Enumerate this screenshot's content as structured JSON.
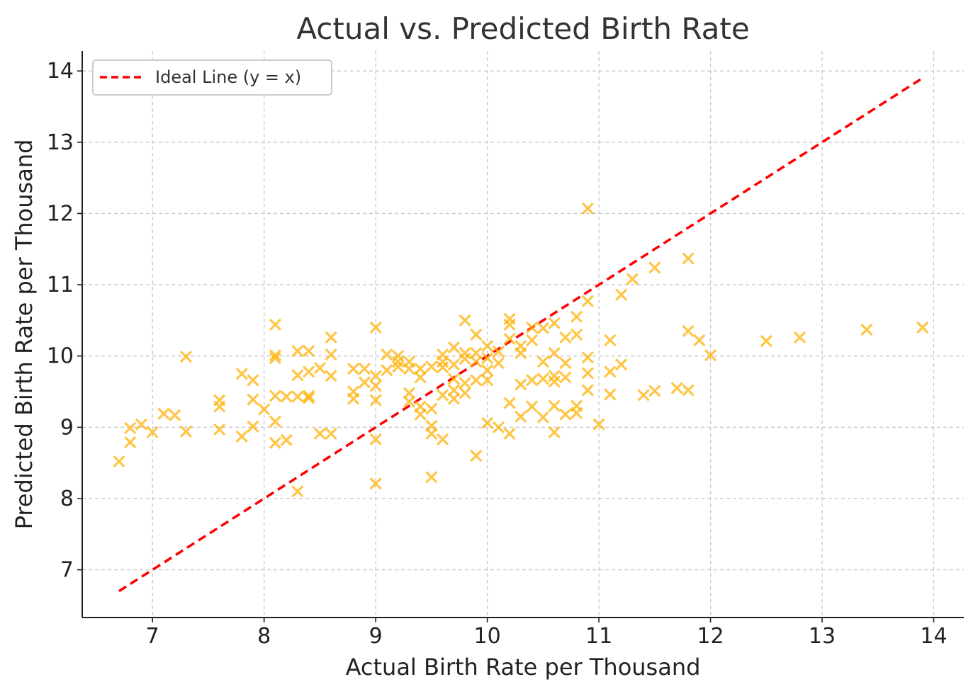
{
  "chart_data": {
    "type": "scatter",
    "title": "Actual vs. Predicted Birth Rate",
    "xlabel": "Actual Birth Rate per Thousand",
    "ylabel": "Predicted Birth Rate per Thousand",
    "xlim": [
      6.37,
      14.27
    ],
    "ylim": [
      6.33,
      14.28
    ],
    "xticks": [
      7,
      8,
      9,
      10,
      11,
      12,
      13,
      14
    ],
    "yticks": [
      7,
      8,
      9,
      10,
      11,
      12,
      13,
      14
    ],
    "grid": true,
    "legend": {
      "position": "top-left",
      "entries": [
        "Ideal Line (y = x)"
      ]
    },
    "colors": {
      "points": "#FFB000",
      "ideal_line": "#FF0000",
      "grid": "#C8C8C8",
      "axes": "#222222"
    },
    "ideal_line": {
      "name": "Ideal Line (y = x)",
      "x": [
        6.7,
        13.9
      ],
      "y": [
        6.7,
        13.9
      ],
      "style": "dashed"
    },
    "points": [
      [
        6.7,
        8.52
      ],
      [
        6.8,
        8.79
      ],
      [
        6.8,
        8.99
      ],
      [
        6.9,
        9.04
      ],
      [
        7.0,
        8.93
      ],
      [
        7.1,
        9.19
      ],
      [
        7.2,
        9.17
      ],
      [
        7.3,
        8.94
      ],
      [
        7.3,
        9.99
      ],
      [
        7.6,
        8.97
      ],
      [
        7.6,
        9.29
      ],
      [
        7.6,
        9.38
      ],
      [
        7.8,
        8.87
      ],
      [
        7.8,
        9.75
      ],
      [
        7.9,
        9.01
      ],
      [
        7.9,
        9.39
      ],
      [
        7.9,
        9.66
      ],
      [
        8.0,
        9.25
      ],
      [
        8.1,
        8.78
      ],
      [
        8.1,
        9.08
      ],
      [
        8.1,
        9.44
      ],
      [
        8.1,
        9.97
      ],
      [
        8.1,
        10.01
      ],
      [
        8.1,
        10.44
      ],
      [
        8.2,
        8.82
      ],
      [
        8.2,
        9.43
      ],
      [
        8.3,
        8.1
      ],
      [
        8.3,
        9.43
      ],
      [
        8.3,
        9.73
      ],
      [
        8.3,
        10.07
      ],
      [
        8.4,
        9.41
      ],
      [
        8.4,
        9.44
      ],
      [
        8.4,
        9.78
      ],
      [
        8.4,
        10.07
      ],
      [
        8.5,
        8.91
      ],
      [
        8.5,
        9.83
      ],
      [
        8.6,
        8.91
      ],
      [
        8.6,
        9.72
      ],
      [
        8.6,
        10.02
      ],
      [
        8.6,
        10.26
      ],
      [
        8.8,
        9.4
      ],
      [
        8.8,
        9.5
      ],
      [
        8.8,
        9.82
      ],
      [
        8.9,
        9.63
      ],
      [
        8.9,
        9.82
      ],
      [
        9.0,
        8.21
      ],
      [
        9.0,
        8.83
      ],
      [
        9.0,
        9.38
      ],
      [
        9.0,
        9.58
      ],
      [
        9.0,
        9.72
      ],
      [
        9.0,
        10.4
      ],
      [
        9.1,
        9.8
      ],
      [
        9.1,
        10.02
      ],
      [
        9.2,
        9.85
      ],
      [
        9.2,
        9.92
      ],
      [
        9.2,
        10.0
      ],
      [
        9.3,
        9.36
      ],
      [
        9.3,
        9.48
      ],
      [
        9.3,
        9.82
      ],
      [
        9.3,
        9.92
      ],
      [
        9.4,
        9.18
      ],
      [
        9.4,
        9.29
      ],
      [
        9.4,
        9.7
      ],
      [
        9.4,
        9.82
      ],
      [
        9.5,
        8.3
      ],
      [
        9.5,
        8.91
      ],
      [
        9.5,
        9.02
      ],
      [
        9.5,
        9.26
      ],
      [
        9.5,
        9.85
      ],
      [
        9.6,
        8.83
      ],
      [
        9.6,
        9.45
      ],
      [
        9.6,
        9.84
      ],
      [
        9.6,
        9.92
      ],
      [
        9.6,
        10.02
      ],
      [
        9.7,
        9.4
      ],
      [
        9.7,
        9.52
      ],
      [
        9.7,
        9.68
      ],
      [
        9.7,
        9.88
      ],
      [
        9.7,
        10.12
      ],
      [
        9.8,
        9.48
      ],
      [
        9.8,
        9.62
      ],
      [
        9.8,
        9.96
      ],
      [
        9.8,
        10.04
      ],
      [
        9.8,
        10.5
      ],
      [
        9.9,
        8.6
      ],
      [
        9.9,
        9.66
      ],
      [
        9.9,
        9.92
      ],
      [
        9.9,
        10.04
      ],
      [
        9.9,
        10.3
      ],
      [
        10.0,
        9.06
      ],
      [
        10.0,
        9.66
      ],
      [
        10.0,
        9.8
      ],
      [
        10.0,
        9.97
      ],
      [
        10.0,
        10.14
      ],
      [
        10.1,
        9.0
      ],
      [
        10.1,
        9.9
      ],
      [
        10.1,
        10.06
      ],
      [
        10.2,
        8.91
      ],
      [
        10.2,
        9.34
      ],
      [
        10.2,
        10.24
      ],
      [
        10.2,
        10.44
      ],
      [
        10.2,
        10.52
      ],
      [
        10.3,
        9.15
      ],
      [
        10.3,
        9.6
      ],
      [
        10.3,
        10.04
      ],
      [
        10.3,
        10.14
      ],
      [
        10.4,
        9.29
      ],
      [
        10.4,
        9.66
      ],
      [
        10.4,
        10.22
      ],
      [
        10.4,
        10.4
      ],
      [
        10.5,
        9.14
      ],
      [
        10.5,
        9.68
      ],
      [
        10.5,
        9.92
      ],
      [
        10.5,
        10.39
      ],
      [
        10.6,
        8.93
      ],
      [
        10.6,
        9.3
      ],
      [
        10.6,
        9.64
      ],
      [
        10.6,
        9.72
      ],
      [
        10.6,
        10.04
      ],
      [
        10.6,
        10.46
      ],
      [
        10.7,
        9.18
      ],
      [
        10.7,
        9.7
      ],
      [
        10.7,
        9.9
      ],
      [
        10.7,
        10.26
      ],
      [
        10.8,
        9.2
      ],
      [
        10.8,
        9.3
      ],
      [
        10.8,
        10.3
      ],
      [
        10.8,
        10.55
      ],
      [
        10.9,
        9.52
      ],
      [
        10.9,
        9.76
      ],
      [
        10.9,
        9.98
      ],
      [
        10.9,
        10.77
      ],
      [
        10.9,
        12.07
      ],
      [
        11.0,
        9.04
      ],
      [
        11.1,
        9.46
      ],
      [
        11.1,
        9.78
      ],
      [
        11.1,
        10.22
      ],
      [
        11.2,
        9.88
      ],
      [
        11.2,
        10.86
      ],
      [
        11.3,
        11.08
      ],
      [
        11.4,
        9.45
      ],
      [
        11.5,
        9.51
      ],
      [
        11.5,
        11.24
      ],
      [
        11.7,
        9.55
      ],
      [
        11.8,
        9.52
      ],
      [
        11.8,
        10.35
      ],
      [
        11.8,
        11.37
      ],
      [
        11.9,
        10.22
      ],
      [
        12.0,
        10.01
      ],
      [
        12.5,
        10.21
      ],
      [
        12.8,
        10.26
      ],
      [
        13.4,
        10.37
      ],
      [
        13.9,
        10.4
      ]
    ]
  }
}
